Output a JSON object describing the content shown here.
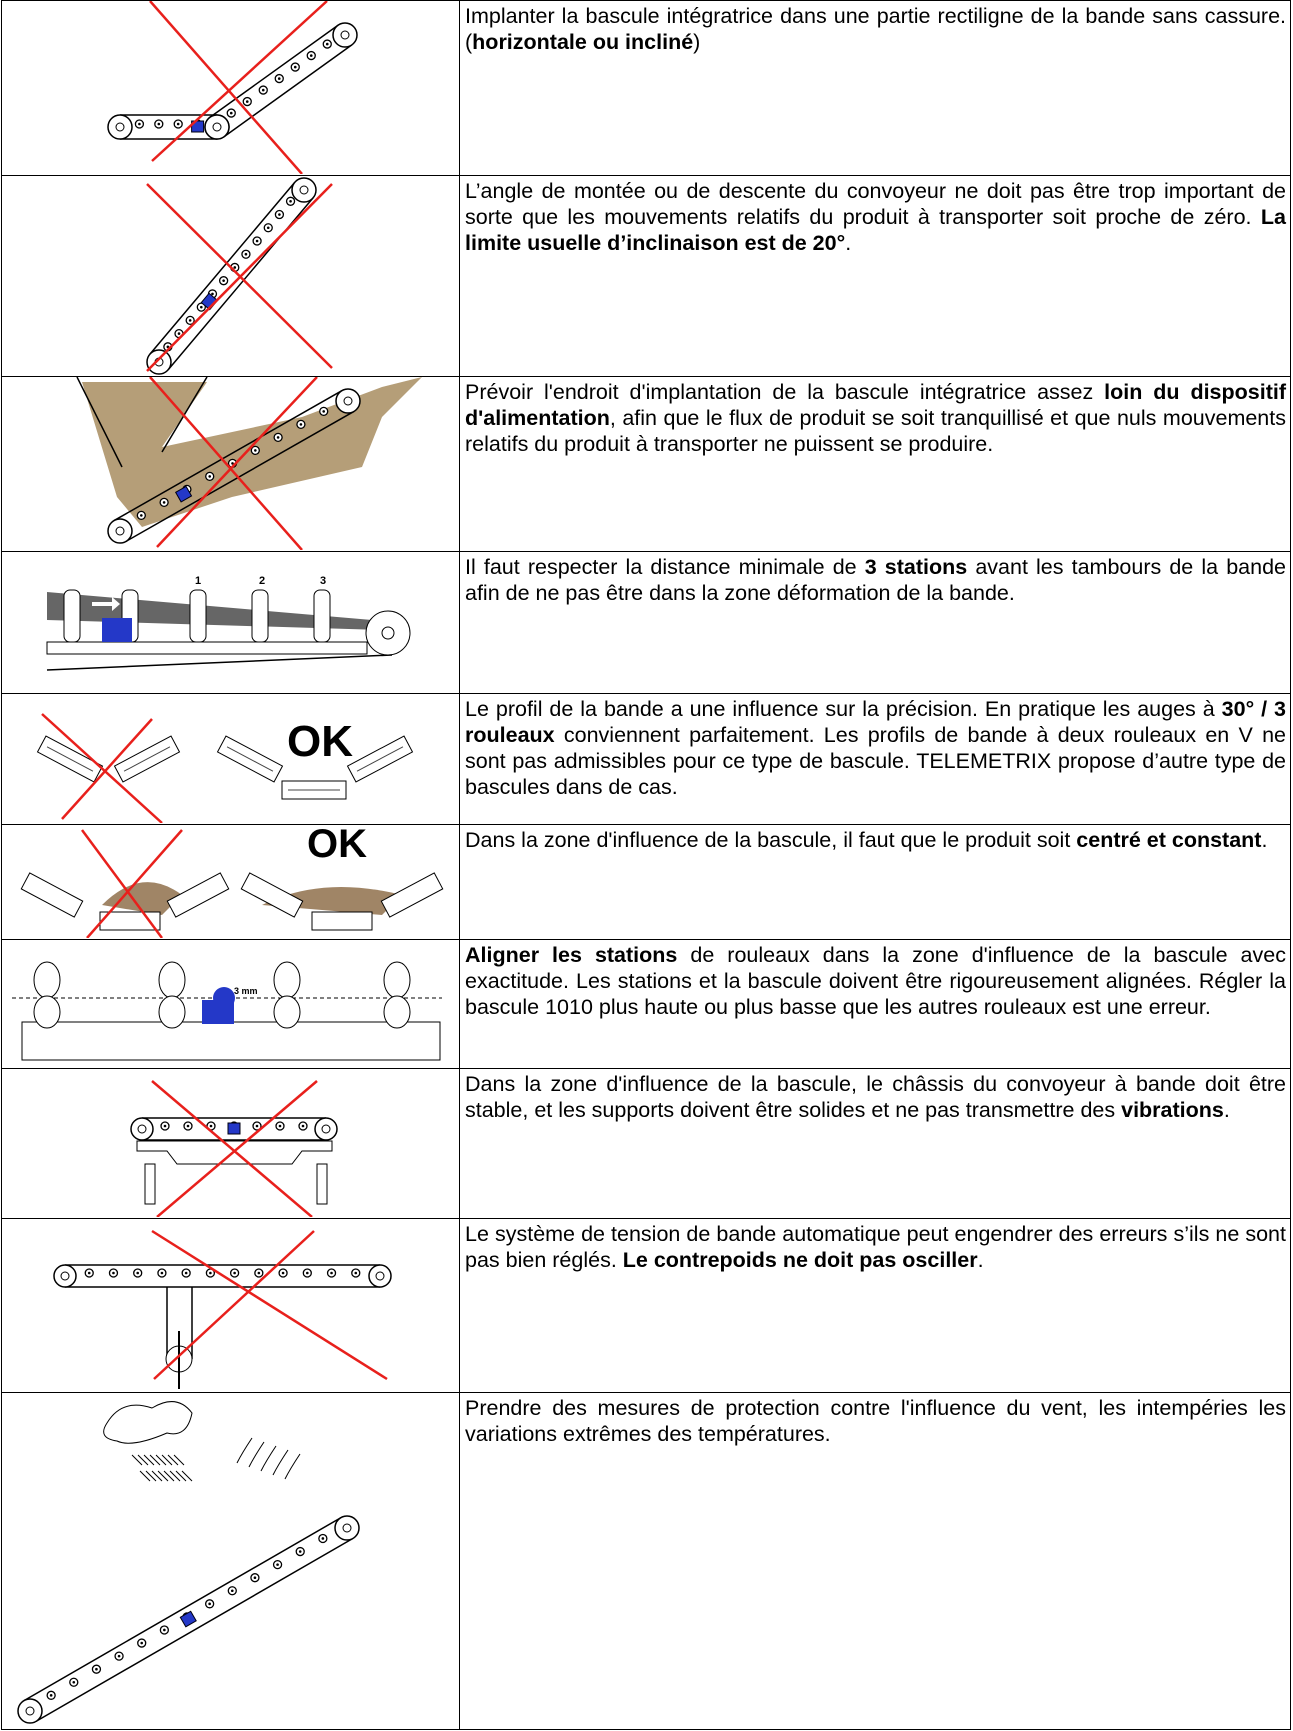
{
  "rows": [
    {
      "text": [
        {
          "text": "Implanter  la bascule intégratrice dans une partie rectiligne de la bande sans cassure. ("
        },
        {
          "text": "horizontale ou  incliné",
          "bold": true
        },
        {
          "text": ")"
        }
      ]
    },
    {
      "text": [
        {
          "text": "L’angle de montée ou de descente du convoyeur ne doit pas être trop important de sorte que les mouvements relatifs du produit à transporter soit proche de zéro. "
        },
        {
          "text": "La limite usuelle d’inclinaison est de 20°",
          "bold": true
        },
        {
          "text": "."
        }
      ]
    },
    {
      "text": [
        {
          "text": "Prévoir l'endroit d'implantation de la bascule intégratrice assez "
        },
        {
          "text": "loin du dispositif d'alimentation",
          "bold": true
        },
        {
          "text": ", afin que le flux de produit se soit tranquillisé et que nuls mouvements relatifs du produit à transporter ne puissent se produire."
        }
      ]
    },
    {
      "text": [
        {
          "text": "Il faut respecter la distance minimale de "
        },
        {
          "text": "3 stations",
          "bold": true
        },
        {
          "text": " avant les tambours de la bande afin de ne pas être dans la zone déformation de la bande."
        }
      ],
      "figure_labels": [
        "1",
        "2",
        "3"
      ]
    },
    {
      "text": [
        {
          "text": "Le profil de la bande a une influence sur la précision. En pratique les auges à "
        },
        {
          "text": "30° / 3 rouleaux",
          "bold": true
        },
        {
          "text": " conviennent parfaitement. Les profils de bande à deux rouleaux en V ne sont pas admissibles pour ce type de bascule. TELEMETRIX propose d’autre type de bascules dans de cas."
        }
      ],
      "figure_labels": [
        "OK"
      ]
    },
    {
      "text": [
        {
          "text": "Dans la zone d'influence de la bascule, il faut que le produit soit "
        },
        {
          "text": "centré et constant",
          "bold": true
        },
        {
          "text": "."
        }
      ],
      "figure_labels": [
        "OK"
      ]
    },
    {
      "text": [
        {
          "text": "Aligner les stations",
          "bold": true
        },
        {
          "text": " de rouleaux dans la zone d'influence de la bascule avec exactitude. Les stations et la bascule doivent être rigoureusement alignées. Régler la bascule 1010 plus haute ou plus basse que les autres rouleaux est une erreur."
        }
      ],
      "figure_labels": [
        "3 mm"
      ]
    },
    {
      "text": [
        {
          "text": "Dans la zone d'influence de la bascule, le châssis du convoyeur à bande doit être stable, et les supports doivent être solides et ne pas transmettre des "
        },
        {
          "text": "vibrations",
          "bold": true
        },
        {
          "text": "."
        }
      ]
    },
    {
      "text": [
        {
          "text": "Le système de tension de bande automatique peut engendrer des erreurs s’ils ne sont pas bien réglés. "
        },
        {
          "text": "Le contrepoids ne doit pas osciller",
          "bold": true
        },
        {
          "text": "."
        }
      ]
    },
    {
      "text": [
        {
          "text": "Prendre des mesures de protection contre l'influence du vent, les intempéries les variations extrêmes des températures."
        }
      ]
    }
  ]
}
